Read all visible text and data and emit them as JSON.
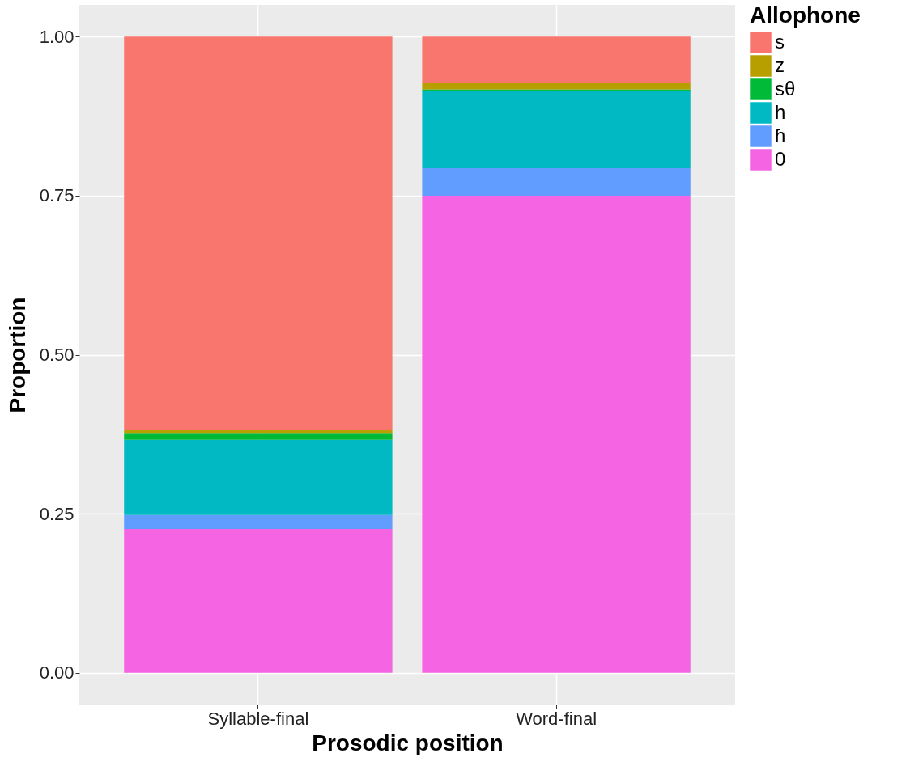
{
  "chart_data": {
    "type": "bar",
    "stacked": true,
    "xlabel": "Prosodic position",
    "ylabel": "Proportion",
    "legend_title": "Allophone",
    "legend": "right",
    "grid": true,
    "categories": [
      "Syllable-final",
      "Word-final"
    ],
    "ylim": [
      -0.05,
      1.05
    ],
    "yticks": [
      {
        "value": 0,
        "label": "0.00"
      },
      {
        "value": 0.25,
        "label": "0.25"
      },
      {
        "value": 0.5,
        "label": "0.50"
      },
      {
        "value": 0.75,
        "label": "0.75"
      },
      {
        "value": 1,
        "label": "1.00"
      }
    ],
    "series": [
      {
        "name": "0",
        "color": "#f564e3",
        "values": [
          0.226,
          0.75
        ]
      },
      {
        "name": "ɦ",
        "color": "#619cff",
        "values": [
          0.022,
          0.043
        ]
      },
      {
        "name": "h",
        "color": "#00b9c2",
        "values": [
          0.118,
          0.121
        ]
      },
      {
        "name": "sθ",
        "color": "#00ba38",
        "values": [
          0.011,
          0.003
        ]
      },
      {
        "name": "z",
        "color": "#b79f00",
        "values": [
          0.004,
          0.01
        ]
      },
      {
        "name": "s",
        "color": "#f8766d",
        "values": [
          0.619,
          0.073
        ]
      }
    ]
  }
}
